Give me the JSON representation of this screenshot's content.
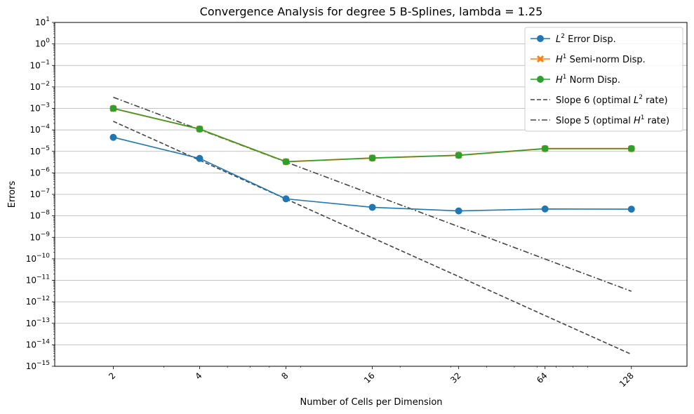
{
  "chart_data": {
    "type": "line",
    "title": "Convergence Analysis for degree 5 B-Splines, lambda = 1.25",
    "xlabel": "Number of Cells per Dimension",
    "ylabel": "Errors",
    "x_scale": "log2",
    "y_scale": "log10",
    "xlim": [
      1.25,
      200
    ],
    "ylim_exponents": [
      -15,
      1
    ],
    "grid": "horizontal",
    "legend_position": "top-right",
    "x": [
      2,
      4,
      8,
      16,
      32,
      64,
      128
    ],
    "x_tick_labels": [
      "2",
      "4",
      "8",
      "16",
      "32",
      "64",
      "128"
    ],
    "y_tick_base": "10",
    "y_tick_exponents": [
      "1",
      "0",
      "−1",
      "−2",
      "−3",
      "−4",
      "−5",
      "−6",
      "−7",
      "−8",
      "−9",
      "−10",
      "−11",
      "−12",
      "−13",
      "−14",
      "−15"
    ],
    "series": [
      {
        "key": "l2",
        "legend_main": "L",
        "legend_sup": "2",
        "legend_rest": " Error Disp.",
        "color": "#1f77b4",
        "style": "solid",
        "marker": "circle",
        "values": [
          4.5e-05,
          4.7e-06,
          6.2e-08,
          2.5e-08,
          1.7e-08,
          2.1e-08,
          2.05e-08
        ]
      },
      {
        "key": "h1semi",
        "legend_main": "H",
        "legend_sup": "1",
        "legend_rest": " Semi-norm Disp.",
        "color": "#ff7f0e",
        "style": "solid",
        "marker": "x",
        "values": [
          0.00099,
          0.00011,
          3.3e-06,
          4.9e-06,
          6.6e-06,
          1.35e-05,
          1.35e-05
        ]
      },
      {
        "key": "h1norm",
        "legend_main": "H",
        "legend_sup": "1",
        "legend_rest": " Norm Disp.",
        "color": "#2ca02c",
        "style": "solid",
        "marker": "circle",
        "values": [
          0.001,
          0.00011,
          3.3e-06,
          4.9e-06,
          6.6e-06,
          1.35e-05,
          1.35e-05
        ]
      },
      {
        "key": "slope6",
        "legend_main": "Slope 6 (optimal ",
        "legend_sup": "2",
        "legend_rest": " rate)",
        "legend_sym": "L",
        "color": "#444444",
        "style": "dashed",
        "marker": "none",
        "values": [
          0.00025,
          3.9e-06,
          6.1e-08,
          9.5e-10,
          1.5e-11,
          2.3e-13,
          3.6e-15
        ]
      },
      {
        "key": "slope5",
        "legend_main": "Slope 5 (optimal ",
        "legend_sup": "1",
        "legend_rest": " rate)",
        "legend_sym": "H",
        "color": "#444444",
        "style": "dashdot",
        "marker": "none",
        "values": [
          0.0033,
          0.000103,
          3.2e-06,
          1e-07,
          3.15e-09,
          9.8e-11,
          3.1e-12
        ]
      }
    ]
  }
}
